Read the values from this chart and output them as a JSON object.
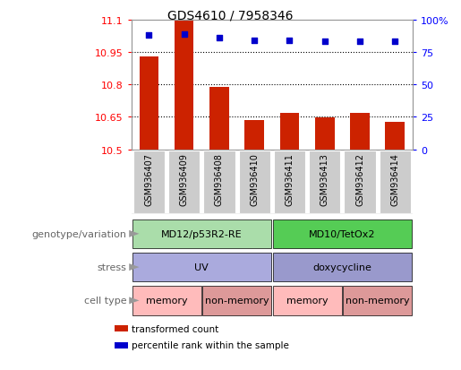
{
  "title": "GDS4610 / 7958346",
  "samples": [
    "GSM936407",
    "GSM936409",
    "GSM936408",
    "GSM936410",
    "GSM936411",
    "GSM936413",
    "GSM936412",
    "GSM936414"
  ],
  "bar_values": [
    10.93,
    11.1,
    10.79,
    10.635,
    10.67,
    10.648,
    10.67,
    10.625
  ],
  "dot_values": [
    88,
    89,
    86,
    84,
    84,
    83,
    83,
    83
  ],
  "ymin": 10.5,
  "ymax": 11.1,
  "y2min": 0,
  "y2max": 100,
  "yticks": [
    10.5,
    10.65,
    10.8,
    10.95,
    11.1
  ],
  "ytick_labels": [
    "10.5",
    "10.65",
    "10.8",
    "10.95",
    "11.1"
  ],
  "y2ticks": [
    0,
    25,
    50,
    75,
    100
  ],
  "y2tick_labels": [
    "0",
    "25",
    "50",
    "75",
    "100%"
  ],
  "hlines": [
    10.65,
    10.8,
    10.95
  ],
  "bar_color": "#cc2200",
  "dot_color": "#0000cc",
  "bar_width": 0.55,
  "genotype_groups": [
    {
      "label": "MD12/p53R2-RE",
      "start": 0,
      "end": 4,
      "color": "#aaddaa"
    },
    {
      "label": "MD10/TetOx2",
      "start": 4,
      "end": 8,
      "color": "#55cc55"
    }
  ],
  "stress_groups": [
    {
      "label": "UV",
      "start": 0,
      "end": 4,
      "color": "#aaaadd"
    },
    {
      "label": "doxycycline",
      "start": 4,
      "end": 8,
      "color": "#9999cc"
    }
  ],
  "cell_groups": [
    {
      "label": "memory",
      "start": 0,
      "end": 2,
      "color": "#ffbbbb"
    },
    {
      "label": "non-memory",
      "start": 2,
      "end": 4,
      "color": "#dd9999"
    },
    {
      "label": "memory",
      "start": 4,
      "end": 6,
      "color": "#ffbbbb"
    },
    {
      "label": "non-memory",
      "start": 6,
      "end": 8,
      "color": "#dd9999"
    }
  ],
  "row_labels": [
    "genotype/variation",
    "stress",
    "cell type"
  ],
  "row_label_color": "#666666",
  "arrow_color": "#999999",
  "legend_items": [
    {
      "label": "transformed count",
      "color": "#cc2200"
    },
    {
      "label": "percentile rank within the sample",
      "color": "#0000cc"
    }
  ],
  "sample_box_color": "#cccccc",
  "spine_color": "#999999"
}
